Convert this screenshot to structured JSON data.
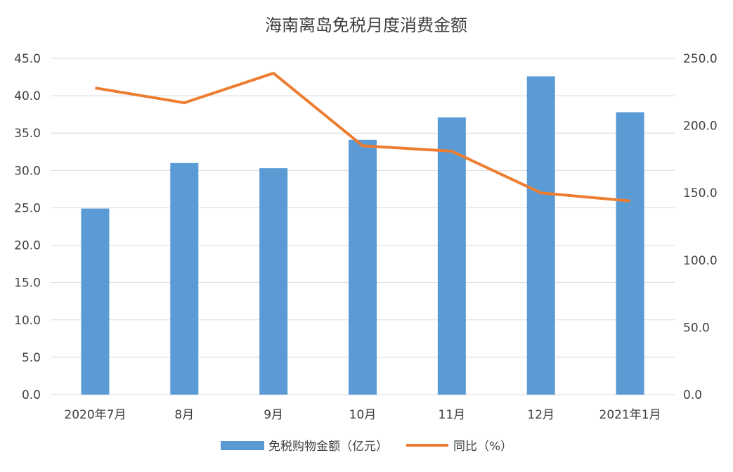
{
  "chart_data": {
    "type": "bar+line",
    "title": "海南离岛免税月度消费金额",
    "categories": [
      "2020年7月",
      "8月",
      "9月",
      "10月",
      "11月",
      "12月",
      "2021年1月"
    ],
    "series": [
      {
        "name": "免税购物金额（亿元）",
        "type": "bar",
        "axis": "left",
        "color": "#5b9bd5",
        "values": [
          24.9,
          31.0,
          30.3,
          34.1,
          37.1,
          42.6,
          37.8
        ]
      },
      {
        "name": "同比（%）",
        "type": "line",
        "axis": "right",
        "color": "#ed7d31",
        "values": [
          228.0,
          217.0,
          239.0,
          185.0,
          181.0,
          150.0,
          144.0
        ]
      }
    ],
    "y_left": {
      "min": 0,
      "max": 45,
      "step": 5,
      "tick_labels": [
        "0.0",
        "5.0",
        "10.0",
        "15.0",
        "20.0",
        "25.0",
        "30.0",
        "35.0",
        "40.0",
        "45.0"
      ]
    },
    "y_right": {
      "min": 0,
      "max": 250,
      "step": 50,
      "tick_labels": [
        "0.0",
        "50.0",
        "100.0",
        "150.0",
        "200.0",
        "250.0"
      ]
    },
    "grid": true,
    "legend_position": "bottom"
  }
}
